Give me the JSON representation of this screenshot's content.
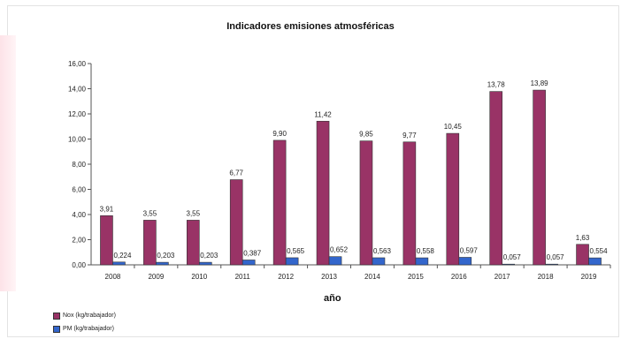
{
  "chart_data": {
    "type": "bar",
    "title": "Indicadores emisiones atmosféricas",
    "xlabel": "año",
    "ylabel": "",
    "ylim": [
      0,
      16
    ],
    "yticks": [
      "0,00",
      "2,00",
      "4,00",
      "6,00",
      "8,00",
      "10,00",
      "12,00",
      "14,00",
      "16,00"
    ],
    "categories": [
      "2008",
      "2009",
      "2010",
      "2011",
      "2012",
      "2013",
      "2014",
      "2015",
      "2016",
      "2017",
      "2018",
      "2019"
    ],
    "series": [
      {
        "name": "Nox (kg/trabajador)",
        "color": "#993366",
        "values": [
          3.91,
          3.55,
          3.55,
          6.77,
          9.9,
          11.42,
          9.85,
          9.77,
          10.45,
          13.78,
          13.89,
          1.63
        ],
        "labels": [
          "3,91",
          "3,55",
          "3,55",
          "6,77",
          "9,90",
          "11,42",
          "9,85",
          "9,77",
          "10,45",
          "13,78",
          "13,89",
          "1,63"
        ]
      },
      {
        "name": "PM (kg/trabajador)",
        "color": "#3366cc",
        "values": [
          0.224,
          0.203,
          0.203,
          0.387,
          0.565,
          0.652,
          0.563,
          0.558,
          0.597,
          0.057,
          0.057,
          0.554
        ],
        "labels": [
          "0,224",
          "0,203",
          "0,203",
          "0,387",
          "0,565",
          "0,652",
          "0,563",
          "0,558",
          "0,597",
          "0,057",
          "0,057",
          "0,554"
        ]
      }
    ],
    "grid": false,
    "legend_position": "bottom-left"
  }
}
